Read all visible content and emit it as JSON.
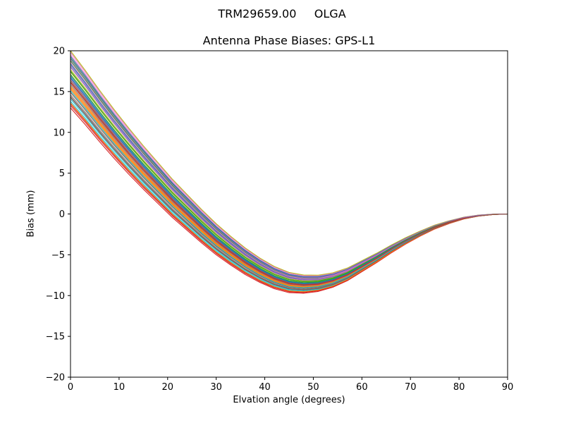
{
  "figure": {
    "suptitle": "TRM29659.00     OLGA"
  },
  "chart_data": {
    "type": "line",
    "title": "Antenna Phase Biases: GPS-L1",
    "xlabel": "Elvation angle (degrees)",
    "ylabel": "Bias (mm)",
    "xlim": [
      0,
      90
    ],
    "ylim": [
      -20,
      20
    ],
    "xticks": [
      0,
      10,
      20,
      30,
      40,
      50,
      60,
      70,
      80,
      90
    ],
    "yticks": [
      -20,
      -15,
      -10,
      -5,
      0,
      5,
      10,
      15,
      20
    ],
    "grid": false,
    "legend": "none",
    "x": [
      0,
      3,
      6,
      9,
      12,
      15,
      18,
      21,
      24,
      27,
      30,
      33,
      36,
      39,
      42,
      45,
      48,
      51,
      54,
      57,
      60,
      63,
      66,
      69,
      72,
      75,
      78,
      81,
      84,
      87,
      90
    ],
    "mean_curve": [
      16.5,
      14.3,
      12.0,
      9.8,
      7.7,
      5.7,
      3.8,
      1.9,
      0.2,
      -1.5,
      -3.1,
      -4.5,
      -5.8,
      -6.9,
      -7.8,
      -8.4,
      -8.6,
      -8.5,
      -8.1,
      -7.4,
      -6.4,
      -5.4,
      -4.3,
      -3.3,
      -2.4,
      -1.6,
      -1.0,
      -0.5,
      -0.2,
      -0.05,
      0.0
    ],
    "series_offsets": [
      0.4,
      -1.2,
      2.6,
      -3.2,
      1.5,
      -0.3,
      3.3,
      -2.1,
      0.9,
      -2.7,
      1.9,
      -0.8,
      2.3,
      -3.5,
      0.1,
      -1.6,
      3.0,
      -0.6,
      1.2,
      -2.4,
      2.8,
      -1.0,
      0.6,
      -3.0,
      1.7,
      -0.1,
      2.1,
      -1.9,
      3.5,
      -1.4,
      0.2,
      -2.9,
      1.0,
      -0.4,
      2.5,
      -2.2
    ],
    "spread_exponent": 1.5,
    "value_range_at_0deg": [
      13.0,
      20.0
    ],
    "value_range_at_min": [
      -9.6,
      -7.2
    ],
    "min_location_deg": 46,
    "colors": [
      "#1f77b4",
      "#ff7f0e",
      "#2ca02c",
      "#d62728",
      "#9467bd",
      "#8c564b",
      "#e377c2",
      "#7f7f7f",
      "#bcbd22",
      "#17becf"
    ]
  },
  "layout_colors": {
    "background": "#ffffff",
    "axes_frame": "#000000"
  }
}
